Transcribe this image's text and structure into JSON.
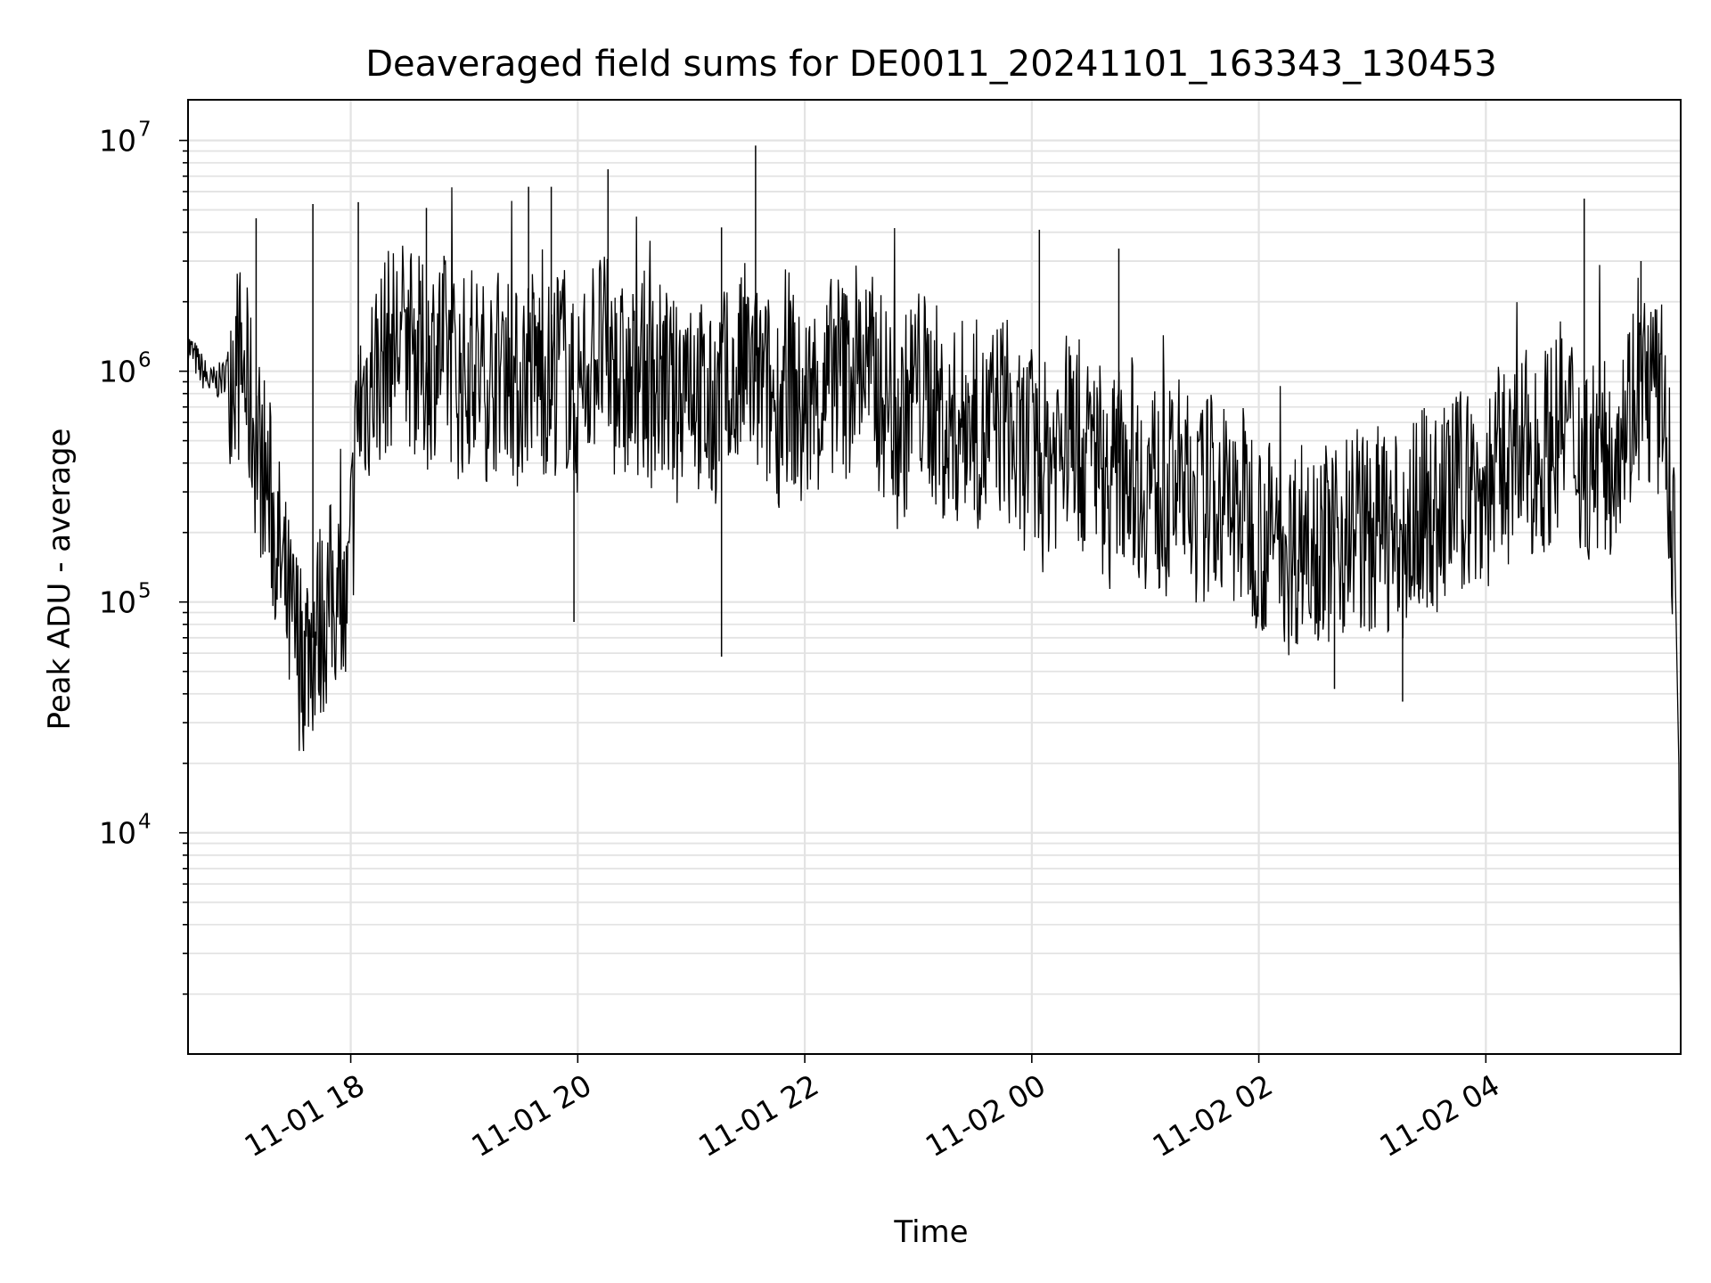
{
  "chart_data": {
    "type": "line",
    "title": "Deaveraged field sums for DE0011_20241101_163343_130453",
    "xlabel": "Time",
    "ylabel": "Peak ADU - average",
    "yscale": "log",
    "ylim": [
      1100,
      15000000
    ],
    "xlim": [
      "2024-11-01T16:34",
      "2024-11-02T05:43"
    ],
    "grid": true,
    "colors": {
      "line": "#000000",
      "grid": "#e3e3e3",
      "axes": "#000000"
    },
    "x_ticks": [
      {
        "value": "2024-11-01T18:00",
        "label": "11-01 18"
      },
      {
        "value": "2024-11-01T20:00",
        "label": "11-01 20"
      },
      {
        "value": "2024-11-01T22:00",
        "label": "11-01 22"
      },
      {
        "value": "2024-11-02T00:00",
        "label": "11-02 00"
      },
      {
        "value": "2024-11-02T02:00",
        "label": "11-02 02"
      },
      {
        "value": "2024-11-02T04:00",
        "label": "11-02 04"
      }
    ],
    "y_ticks": [
      {
        "value": 10000,
        "base": "10",
        "exp": "4"
      },
      {
        "value": 100000,
        "base": "10",
        "exp": "5"
      },
      {
        "value": 1000000,
        "base": "10",
        "exp": "6"
      },
      {
        "value": 10000000,
        "base": "10",
        "exp": "7"
      }
    ],
    "series": [
      {
        "x": [
          "2024-11-01T16:34",
          "2024-11-01T16:40",
          "2024-11-01T16:46",
          "2024-11-01T16:52",
          "2024-11-01T16:58",
          "2024-11-01T17:04",
          "2024-11-01T17:10",
          "2024-11-01T17:16",
          "2024-11-01T17:22",
          "2024-11-01T17:28",
          "2024-11-01T17:34",
          "2024-11-01T17:40",
          "2024-11-01T17:46",
          "2024-11-01T17:52",
          "2024-11-01T17:58",
          "2024-11-01T18:04",
          "2024-11-01T18:10",
          "2024-11-01T18:16",
          "2024-11-01T18:22",
          "2024-11-01T18:28",
          "2024-11-01T18:34",
          "2024-11-01T18:40",
          "2024-11-01T18:46",
          "2024-11-01T18:52",
          "2024-11-01T18:58",
          "2024-11-01T19:04",
          "2024-11-01T19:10",
          "2024-11-01T19:16",
          "2024-11-01T19:22",
          "2024-11-01T19:28",
          "2024-11-01T19:34",
          "2024-11-01T19:40",
          "2024-11-01T19:46",
          "2024-11-01T19:52",
          "2024-11-01T19:58",
          "2024-11-01T20:04",
          "2024-11-01T20:10",
          "2024-11-01T20:16",
          "2024-11-01T20:22",
          "2024-11-01T20:28",
          "2024-11-01T20:34",
          "2024-11-01T20:40",
          "2024-11-01T20:46",
          "2024-11-01T20:52",
          "2024-11-01T20:58",
          "2024-11-01T21:04",
          "2024-11-01T21:10",
          "2024-11-01T21:16",
          "2024-11-01T21:22",
          "2024-11-01T21:28",
          "2024-11-01T21:34",
          "2024-11-01T21:40",
          "2024-11-01T21:46",
          "2024-11-01T21:52",
          "2024-11-01T21:58",
          "2024-11-01T22:04",
          "2024-11-01T22:10",
          "2024-11-01T22:16",
          "2024-11-01T22:22",
          "2024-11-01T22:28",
          "2024-11-01T22:34",
          "2024-11-01T22:40",
          "2024-11-01T22:46",
          "2024-11-01T22:52",
          "2024-11-01T22:58",
          "2024-11-01T23:04",
          "2024-11-01T23:10",
          "2024-11-01T23:16",
          "2024-11-01T23:22",
          "2024-11-01T23:28",
          "2024-11-01T23:34",
          "2024-11-01T23:40",
          "2024-11-01T23:46",
          "2024-11-01T23:52",
          "2024-11-01T23:58",
          "2024-11-02T00:04",
          "2024-11-02T00:10",
          "2024-11-02T00:16",
          "2024-11-02T00:22",
          "2024-11-02T00:28",
          "2024-11-02T00:34",
          "2024-11-02T00:40",
          "2024-11-02T00:46",
          "2024-11-02T00:52",
          "2024-11-02T00:58",
          "2024-11-02T01:04",
          "2024-11-02T01:10",
          "2024-11-02T01:16",
          "2024-11-02T01:22",
          "2024-11-02T01:28",
          "2024-11-02T01:34",
          "2024-11-02T01:40",
          "2024-11-02T01:46",
          "2024-11-02T01:52",
          "2024-11-02T01:58",
          "2024-11-02T02:04",
          "2024-11-02T02:10",
          "2024-11-02T02:16",
          "2024-11-02T02:22",
          "2024-11-02T02:28",
          "2024-11-02T02:34",
          "2024-11-02T02:40",
          "2024-11-02T02:46",
          "2024-11-02T02:52",
          "2024-11-02T02:58",
          "2024-11-02T03:04",
          "2024-11-02T03:10",
          "2024-11-02T03:16",
          "2024-11-02T03:22",
          "2024-11-02T03:28",
          "2024-11-02T03:34",
          "2024-11-02T03:40",
          "2024-11-02T03:46",
          "2024-11-02T03:52",
          "2024-11-02T03:58",
          "2024-11-02T04:04",
          "2024-11-02T04:10",
          "2024-11-02T04:16",
          "2024-11-02T04:22",
          "2024-11-02T04:28",
          "2024-11-02T04:34",
          "2024-11-02T04:40",
          "2024-11-02T04:46",
          "2024-11-02T04:52",
          "2024-11-02T04:58",
          "2024-11-02T05:04",
          "2024-11-02T05:10",
          "2024-11-02T05:16",
          "2024-11-02T05:22",
          "2024-11-02T05:28",
          "2024-11-02T05:34",
          "2024-11-02T05:40",
          "2024-11-02T05:42",
          "2024-11-02T05:43"
        ],
        "y": [
          1300000,
          1050000,
          880000,
          920000,
          1200000,
          950000,
          500000,
          320000,
          160000,
          80000,
          60000,
          70000,
          90000,
          110000,
          80000,
          700000,
          900000,
          1100000,
          1300000,
          1400000,
          1200000,
          1000000,
          1300000,
          1100000,
          900000,
          1100000,
          900000,
          1000000,
          1200000,
          800000,
          1100000,
          1000000,
          900000,
          1200000,
          700000,
          1000000,
          1300000,
          1100000,
          900000,
          800000,
          1000000,
          850000,
          900000,
          700000,
          1200000,
          800000,
          600000,
          900000,
          700000,
          1100000,
          900000,
          800000,
          700000,
          1000000,
          600000,
          800000,
          700000,
          1100000,
          900000,
          1200000,
          1000000,
          800000,
          700000,
          600000,
          900000,
          800000,
          700000,
          500000,
          600000,
          700000,
          500000,
          600000,
          700000,
          400000,
          500000,
          350000,
          450000,
          500000,
          600000,
          400000,
          500000,
          300000,
          400000,
          450000,
          300000,
          350000,
          250000,
          350000,
          300000,
          250000,
          300000,
          280000,
          240000,
          260000,
          220000,
          180000,
          200000,
          160000,
          190000,
          220000,
          170000,
          200000,
          190000,
          230000,
          180000,
          220000,
          200000,
          170000,
          220000,
          260000,
          230000,
          280000,
          300000,
          320000,
          280000,
          350000,
          400000,
          380000,
          450000,
          420000,
          500000,
          600000,
          550000,
          400000,
          450000,
          380000,
          600000,
          700000,
          900000,
          800000,
          700000,
          150000,
          20000,
          1200
        ],
        "spikes": [
          {
            "t": "2024-11-01T17:10",
            "y": 4600000
          },
          {
            "t": "2024-11-01T17:40",
            "y": 5300000
          },
          {
            "t": "2024-11-01T18:04",
            "y": 5400000
          },
          {
            "t": "2024-11-01T18:40",
            "y": 5100000
          },
          {
            "t": "2024-11-01T19:34",
            "y": 6300000
          },
          {
            "t": "2024-11-01T19:46",
            "y": 6300000
          },
          {
            "t": "2024-11-01T20:16",
            "y": 7500000
          },
          {
            "t": "2024-11-01T21:34",
            "y": 9500000
          },
          {
            "t": "2024-11-01T21:16",
            "y": 4200000
          },
          {
            "t": "2024-11-02T00:04",
            "y": 4100000
          },
          {
            "t": "2024-11-02T00:46",
            "y": 3400000
          },
          {
            "t": "2024-11-02T04:52",
            "y": 5600000
          },
          {
            "t": "2024-11-02T05:22",
            "y": 3000000
          }
        ],
        "dips": [
          {
            "t": "2024-11-01T17:46",
            "y": 45000
          },
          {
            "t": "2024-11-01T21:16",
            "y": 58000
          },
          {
            "t": "2024-11-01T19:58",
            "y": 82000
          },
          {
            "t": "2024-11-02T03:16",
            "y": 37000
          },
          {
            "t": "2024-11-02T02:40",
            "y": 42000
          }
        ]
      }
    ]
  }
}
